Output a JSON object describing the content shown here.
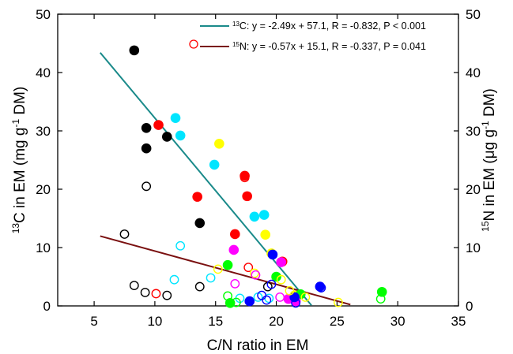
{
  "chart_data": {
    "type": "scatter",
    "xlabel": "C/N ratio in EM",
    "ylabel_left": {
      "sup": "13",
      "text": "C in EM (mg g",
      "sup2": "-1",
      "text2": " DM)"
    },
    "ylabel_right": {
      "sup": "15",
      "text": "N in EM (μg g",
      "sup2": "-1",
      "text2": " DM)"
    },
    "xlim": [
      2,
      35
    ],
    "ylim": [
      0,
      50
    ],
    "xticks": [
      5,
      10,
      15,
      20,
      25,
      30,
      35
    ],
    "yticks": [
      0,
      10,
      20,
      30,
      40,
      50
    ],
    "grid": false,
    "legend_position": "top-right",
    "legend": [
      {
        "sup": "13",
        "label": "C: y = -2.49x + 57.1, R = -0.832, P < 0.001",
        "color": "#1a8a8a",
        "marker": "line"
      },
      {
        "sup": "15",
        "label": "N: y = -0.57x + 15.1, R = -0.337, P = 0.041",
        "color": "#7a1010",
        "marker": "line+open-circle"
      }
    ],
    "fits": [
      {
        "name": "13C",
        "slope": -2.49,
        "intercept": 57.1,
        "x": [
          5.5,
          22.9
        ],
        "color": "#1a8a8a"
      },
      {
        "name": "15N",
        "slope": -0.57,
        "intercept": 15.1,
        "x": [
          5.5,
          26.1
        ],
        "color": "#7a1010"
      }
    ],
    "series": [
      {
        "color": "#000000",
        "filled": true,
        "points": [
          [
            8.3,
            43.8
          ],
          [
            9.3,
            30.5
          ],
          [
            9.3,
            27
          ],
          [
            11,
            29
          ]
        ]
      },
      {
        "color": "#ff0000",
        "filled": true,
        "points": [
          [
            10.3,
            31
          ],
          [
            13.5,
            18.7
          ],
          [
            17.4,
            22.3
          ],
          [
            17.6,
            18.8
          ],
          [
            16.6,
            12.3
          ],
          [
            20.5,
            7.6
          ]
        ]
      },
      {
        "color": "#00e5ff",
        "filled": true,
        "points": [
          [
            11.7,
            32.2
          ],
          [
            12.1,
            29.2
          ],
          [
            14.9,
            24.2
          ],
          [
            18.2,
            15.3
          ],
          [
            19,
            15.6
          ]
        ]
      },
      {
        "color": "#ffff00",
        "filled": true,
        "points": [
          [
            15.3,
            27.8
          ],
          [
            19.1,
            12.2
          ],
          [
            19.6,
            9
          ],
          [
            21.5,
            1.8
          ]
        ]
      },
      {
        "color": "#000000",
        "filled": true,
        "points": [
          [
            13.7,
            14.2
          ]
        ]
      },
      {
        "color": "#00ff00",
        "filled": true,
        "points": [
          [
            16,
            7
          ],
          [
            16.2,
            0.5
          ],
          [
            20,
            5
          ],
          [
            22,
            2
          ],
          [
            28.7,
            2.4
          ]
        ]
      },
      {
        "color": "#ff00ff",
        "filled": true,
        "points": [
          [
            16.5,
            9.6
          ],
          [
            20.4,
            7.5
          ],
          [
            21,
            1.2
          ],
          [
            21.6,
            0.8
          ]
        ]
      },
      {
        "color": "#0000ff",
        "filled": true,
        "points": [
          [
            19.7,
            8.8
          ],
          [
            23.6,
            3.3
          ],
          [
            21.5,
            1.5
          ],
          [
            17.8,
            0.8
          ]
        ]
      },
      {
        "color": "#000000",
        "filled": false,
        "points": [
          [
            7.5,
            12.3
          ],
          [
            8.3,
            3.5
          ],
          [
            9.2,
            2.3
          ],
          [
            9.3,
            20.5
          ],
          [
            11,
            1.8
          ],
          [
            13.7,
            3.3
          ],
          [
            19.3,
            3.3
          ]
        ]
      },
      {
        "color": "#ff0000",
        "filled": false,
        "points": [
          [
            10.1,
            2.1
          ],
          [
            17.4,
            22
          ],
          [
            17.7,
            6.6
          ]
        ]
      },
      {
        "color": "#00e5ff",
        "filled": false,
        "points": [
          [
            11.6,
            4.5
          ],
          [
            12.1,
            10.3
          ],
          [
            14.6,
            4.8
          ],
          [
            17,
            1.3
          ],
          [
            19.4,
            1.3
          ],
          [
            18.5,
            1.5
          ]
        ]
      },
      {
        "color": "#ffff00",
        "filled": false,
        "points": [
          [
            15.2,
            6.3
          ],
          [
            18.2,
            5.6
          ],
          [
            20.4,
            4.5
          ],
          [
            21.1,
            2.6
          ],
          [
            22.4,
            1.5
          ],
          [
            25.1,
            0.6
          ]
        ]
      },
      {
        "color": "#00ff00",
        "filled": false,
        "points": [
          [
            16,
            1.7
          ],
          [
            16.7,
            0.6
          ],
          [
            28.6,
            1.2
          ]
        ]
      },
      {
        "color": "#ff00ff",
        "filled": false,
        "points": [
          [
            16.6,
            3.8
          ],
          [
            18.3,
            5.3
          ],
          [
            20.3,
            1.5
          ]
        ]
      },
      {
        "color": "#0000ff",
        "filled": false,
        "points": [
          [
            18.8,
            1.8
          ],
          [
            19.2,
            1
          ],
          [
            19.6,
            3.7
          ],
          [
            21.6,
            0.5
          ],
          [
            23.7,
            3.1
          ]
        ]
      }
    ]
  }
}
